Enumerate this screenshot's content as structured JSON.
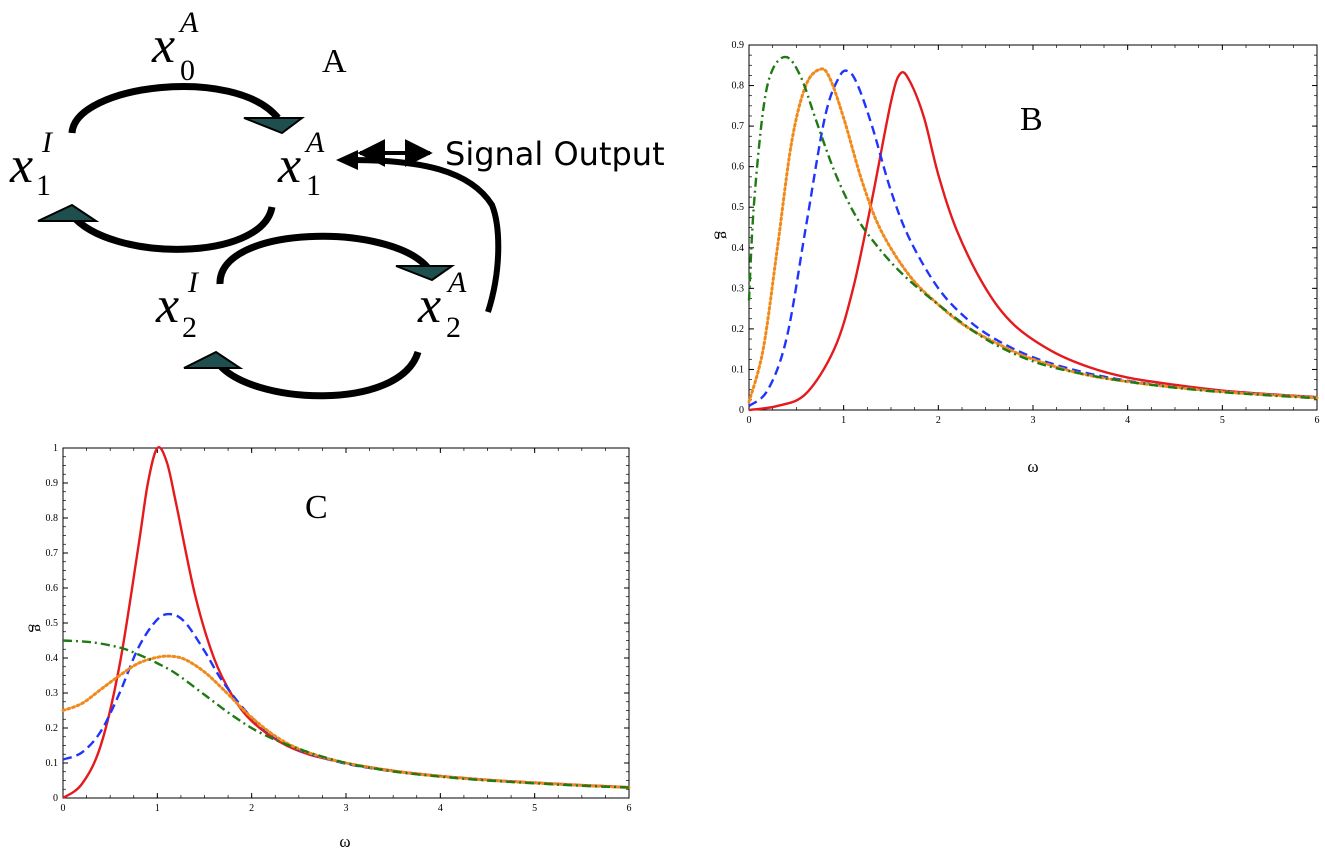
{
  "diagram": {
    "panel_label": "A",
    "output_label": "Signal Output",
    "nodes": [
      {
        "id": "x0A",
        "base": "x",
        "sub": "0",
        "sup": "A"
      },
      {
        "id": "x1I",
        "base": "x",
        "sub": "1",
        "sup": "I"
      },
      {
        "id": "x1A",
        "base": "x",
        "sub": "1",
        "sup": "A"
      },
      {
        "id": "x2I",
        "base": "x",
        "sub": "2",
        "sup": "I"
      },
      {
        "id": "x2A",
        "base": "x",
        "sub": "2",
        "sup": "A"
      }
    ]
  },
  "chart_data": [
    {
      "panel_label": "B",
      "type": "line",
      "xlabel": "ω",
      "ylabel": "g",
      "xlim": [
        0,
        6
      ],
      "ylim": [
        0,
        0.9
      ],
      "xticks": [
        "0",
        "1",
        "2",
        "3",
        "4",
        "5",
        "6"
      ],
      "yticks": [
        "0",
        "0.1",
        "0.2",
        "0.3",
        "0.4",
        "0.5",
        "0.6",
        "0.7",
        "0.8",
        "0.9"
      ],
      "colors": [
        "#e41a1c",
        "#1f35ff",
        "#f08a1c",
        "#1e7a12"
      ],
      "styles": [
        "solid",
        "dashed",
        "dotted",
        "dashdot"
      ],
      "series": [
        {
          "x": [
            0,
            0.3,
            0.6,
            0.9,
            1.1,
            1.3,
            1.5,
            1.6,
            1.7,
            1.85,
            2.0,
            2.2,
            2.5,
            2.8,
            3.2,
            3.6,
            4.0,
            4.5,
            5.0,
            5.5,
            6.0
          ],
          "values": [
            0.0,
            0.01,
            0.04,
            0.15,
            0.3,
            0.52,
            0.76,
            0.83,
            0.81,
            0.72,
            0.58,
            0.44,
            0.3,
            0.21,
            0.145,
            0.105,
            0.08,
            0.062,
            0.048,
            0.039,
            0.032
          ]
        },
        {
          "x": [
            0,
            0.2,
            0.4,
            0.6,
            0.8,
            0.95,
            1.05,
            1.15,
            1.3,
            1.5,
            1.7,
            2.0,
            2.3,
            2.6,
            3.0,
            3.5,
            4.0,
            4.5,
            5.0,
            5.5,
            6.0
          ],
          "values": [
            0.01,
            0.05,
            0.18,
            0.45,
            0.72,
            0.82,
            0.835,
            0.8,
            0.7,
            0.54,
            0.42,
            0.3,
            0.225,
            0.175,
            0.13,
            0.095,
            0.072,
            0.057,
            0.046,
            0.038,
            0.031
          ]
        },
        {
          "x": [
            0,
            0.15,
            0.3,
            0.45,
            0.6,
            0.75,
            0.85,
            1.0,
            1.2,
            1.4,
            1.7,
            2.0,
            2.3,
            2.7,
            3.0,
            3.5,
            4.0,
            4.5,
            5.0,
            5.5,
            6.0
          ],
          "values": [
            0.02,
            0.15,
            0.4,
            0.66,
            0.8,
            0.84,
            0.82,
            0.72,
            0.56,
            0.44,
            0.33,
            0.26,
            0.205,
            0.155,
            0.125,
            0.09,
            0.07,
            0.056,
            0.045,
            0.037,
            0.03
          ]
        },
        {
          "x": [
            0,
            0.05,
            0.15,
            0.25,
            0.4,
            0.55,
            0.7,
            0.9,
            1.1,
            1.3,
            1.6,
            2.0,
            2.5,
            3.0,
            3.5,
            4.0,
            4.5,
            5.0,
            5.5,
            6.0
          ],
          "values": [
            0.27,
            0.5,
            0.74,
            0.84,
            0.87,
            0.82,
            0.72,
            0.59,
            0.49,
            0.42,
            0.34,
            0.26,
            0.175,
            0.12,
            0.09,
            0.07,
            0.055,
            0.044,
            0.036,
            0.029
          ]
        }
      ]
    },
    {
      "panel_label": "C",
      "type": "line",
      "xlabel": "ω",
      "ylabel": "g",
      "xlim": [
        0,
        6
      ],
      "ylim": [
        0,
        1
      ],
      "xticks": [
        "0",
        "1",
        "2",
        "3",
        "4",
        "5",
        "6"
      ],
      "yticks": [
        "0",
        "0.1",
        "0.2",
        "0.3",
        "0.4",
        "0.5",
        "0.6",
        "0.7",
        "0.8",
        "0.9",
        "1"
      ],
      "colors": [
        "#e41a1c",
        "#1f35ff",
        "#f08a1c",
        "#1e7a12"
      ],
      "styles": [
        "solid",
        "dashed",
        "dotted",
        "dashdot"
      ],
      "series": [
        {
          "x": [
            0,
            0.2,
            0.4,
            0.6,
            0.8,
            0.9,
            1.0,
            1.1,
            1.2,
            1.4,
            1.6,
            1.8,
            2.0,
            2.3,
            2.6,
            3.0,
            3.5,
            4.0,
            4.5,
            5.0,
            5.5,
            6.0
          ],
          "values": [
            0.0,
            0.04,
            0.15,
            0.38,
            0.72,
            0.9,
            1.0,
            0.96,
            0.84,
            0.58,
            0.4,
            0.29,
            0.22,
            0.16,
            0.125,
            0.1,
            0.078,
            0.063,
            0.052,
            0.044,
            0.037,
            0.031
          ]
        },
        {
          "x": [
            0,
            0.2,
            0.4,
            0.6,
            0.8,
            1.0,
            1.15,
            1.3,
            1.5,
            1.7,
            2.0,
            2.3,
            2.6,
            3.0,
            3.5,
            4.0,
            4.5,
            5.0,
            5.5,
            6.0
          ],
          "values": [
            0.11,
            0.13,
            0.19,
            0.3,
            0.43,
            0.51,
            0.525,
            0.5,
            0.42,
            0.33,
            0.23,
            0.165,
            0.128,
            0.098,
            0.076,
            0.062,
            0.051,
            0.043,
            0.036,
            0.03
          ]
        },
        {
          "x": [
            0,
            0.2,
            0.4,
            0.6,
            0.8,
            1.0,
            1.15,
            1.3,
            1.5,
            1.7,
            2.0,
            2.3,
            2.6,
            3.0,
            3.5,
            4.0,
            4.5,
            5.0,
            5.5,
            6.0
          ],
          "values": [
            0.25,
            0.27,
            0.31,
            0.35,
            0.385,
            0.402,
            0.405,
            0.395,
            0.36,
            0.31,
            0.23,
            0.168,
            0.13,
            0.1,
            0.077,
            0.062,
            0.051,
            0.043,
            0.036,
            0.03
          ]
        },
        {
          "x": [
            0,
            0.3,
            0.6,
            0.8,
            1.0,
            1.2,
            1.5,
            1.8,
            2.1,
            2.5,
            3.0,
            3.5,
            4.0,
            4.5,
            5.0,
            5.5,
            6.0
          ],
          "values": [
            0.45,
            0.445,
            0.43,
            0.41,
            0.385,
            0.355,
            0.295,
            0.235,
            0.185,
            0.14,
            0.1,
            0.076,
            0.061,
            0.05,
            0.042,
            0.035,
            0.03
          ]
        }
      ]
    }
  ]
}
